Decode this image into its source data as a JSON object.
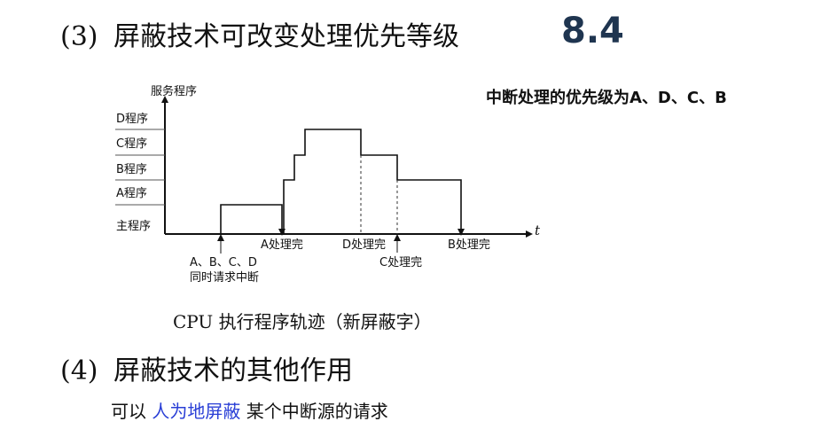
{
  "heading3": {
    "number": "(3)",
    "text": "屏蔽技术可改变处理优先等级"
  },
  "section_number": "8.4",
  "priority_note": "中断处理的优先级为A、D、C、B",
  "diagram": {
    "y_axis_label": "服务程序",
    "x_axis_label": "t",
    "levels": [
      "主程序",
      "A程序",
      "B程序",
      "C程序",
      "D程序"
    ],
    "event_request_line1": "A、B、C、D",
    "event_request_line2": "同时请求中断",
    "event_a_done": "A处理完",
    "event_d_done": "D处理完",
    "event_c_done": "C处理完",
    "event_b_done": "B处理完"
  },
  "caption": "CPU 执行程序轨迹（新屏蔽字）",
  "heading4": {
    "number": "(4)",
    "text": "屏蔽技术的其他作用"
  },
  "body": {
    "prefix": "可以 ",
    "highlight": "人为地屏蔽",
    "suffix": " 某个中断源的请求"
  }
}
